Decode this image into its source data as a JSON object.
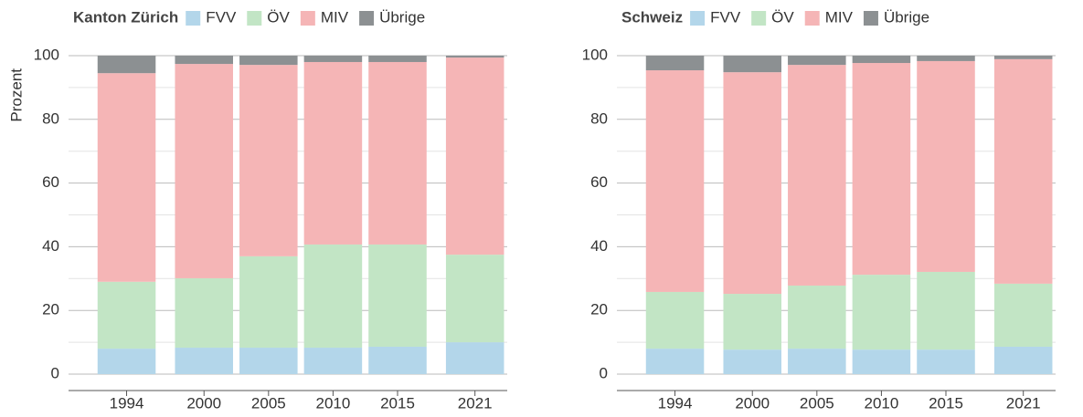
{
  "chart_data": [
    {
      "type": "stacked-bar",
      "title": "Kanton Zürich",
      "ylabel": "Prozent",
      "x": [
        1994,
        2000,
        2005,
        2010,
        2015,
        2021
      ],
      "xlim": [
        1989.5,
        2023.5
      ],
      "xticks": [
        1994,
        2000,
        2005,
        2010,
        2015,
        2021
      ],
      "ylim": [
        0,
        100
      ],
      "yticks": [
        0,
        20,
        40,
        60,
        80,
        100
      ],
      "minor_yticks": [
        10,
        30,
        50,
        70,
        90
      ],
      "grid": true,
      "series": [
        {
          "name": "FVV",
          "color": "#b3d6ea",
          "values": [
            8,
            8.3,
            8.3,
            8.3,
            8.6,
            10
          ]
        },
        {
          "name": "ÖV",
          "color": "#c2e5c5",
          "values": [
            21,
            21.8,
            28.7,
            32.4,
            32.1,
            27.5
          ]
        },
        {
          "name": "MIV",
          "color": "#f5b5b6",
          "values": [
            65.5,
            67.3,
            60.1,
            57.3,
            57.3,
            61.9
          ]
        },
        {
          "name": "Übrige",
          "color": "#8c9092",
          "values": [
            5.5,
            2.6,
            2.9,
            2.0,
            2.0,
            0.6
          ]
        }
      ]
    },
    {
      "type": "stacked-bar",
      "title": "Schweiz",
      "x": [
        1994,
        2000,
        2005,
        2010,
        2015,
        2021
      ],
      "xlim": [
        1989.5,
        2023.5
      ],
      "xticks": [
        1994,
        2000,
        2005,
        2010,
        2015,
        2021
      ],
      "ylim": [
        0,
        100
      ],
      "yticks": [
        0,
        20,
        40,
        60,
        80,
        100
      ],
      "minor_yticks": [
        10,
        30,
        50,
        70,
        90
      ],
      "grid": true,
      "series": [
        {
          "name": "FVV",
          "color": "#b3d6ea",
          "values": [
            8,
            7.7,
            8,
            7.7,
            7.7,
            8.6
          ]
        },
        {
          "name": "ÖV",
          "color": "#c2e5c5",
          "values": [
            17.8,
            17.5,
            19.8,
            23.5,
            24.4,
            19.8
          ]
        },
        {
          "name": "MIV",
          "color": "#f5b5b6",
          "values": [
            69.6,
            69.6,
            69.3,
            66.5,
            66.2,
            70.5
          ]
        },
        {
          "name": "Übrige",
          "color": "#8c9092",
          "values": [
            4.6,
            5.2,
            2.9,
            2.3,
            1.7,
            1.1
          ]
        }
      ]
    }
  ]
}
